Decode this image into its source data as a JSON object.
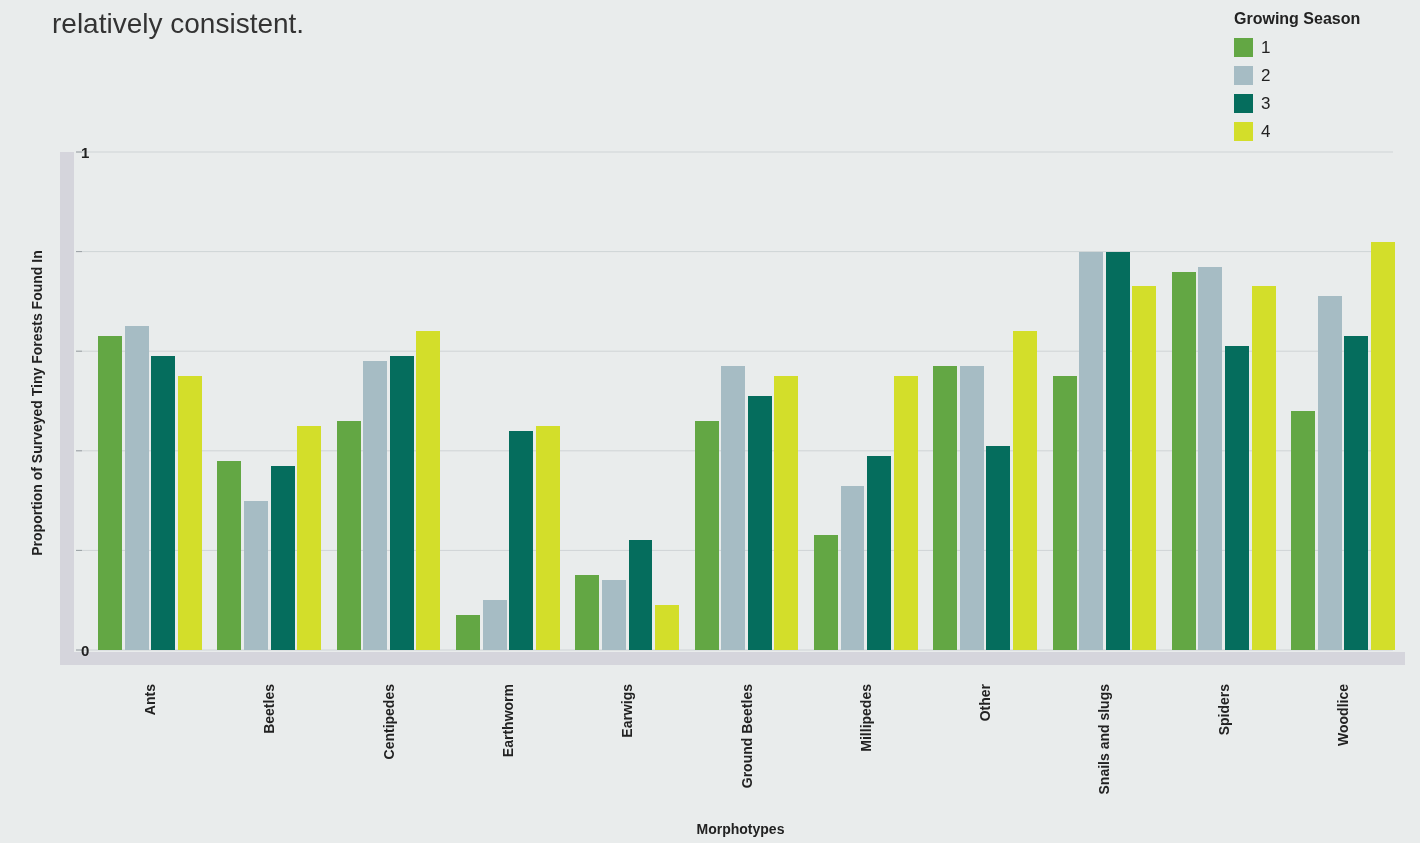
{
  "chart_data": {
    "type": "bar",
    "title": "relatively consistent.",
    "xlabel": "Morphotypes",
    "ylabel": "Proportion of Surveyed Tiny Forests Found In",
    "legend_title": "Growing Season",
    "legend": "top right",
    "grid": "y",
    "categories": [
      "Ants",
      "Beetles",
      "Centipedes",
      "Earthworm",
      "Earwigs",
      "Ground Beetles",
      "Millipedes",
      "Other",
      "Snails and slugs",
      "Spiders",
      "Woodlice"
    ],
    "ylim": [
      0,
      1
    ],
    "yticks": [
      0,
      {
        "value": 0.2,
        "label": null
      },
      {
        "value": 0.4,
        "label": null
      },
      {
        "value": 0.6,
        "label": null
      },
      {
        "value": 0.8,
        "label": null
      },
      1
    ],
    "series": [
      {
        "name": "1",
        "color": "#63a744",
        "values": [
          0.63,
          0.38,
          0.46,
          0.07,
          0.15,
          0.46,
          0.23,
          0.57,
          0.55,
          0.76,
          0.48
        ]
      },
      {
        "name": "2",
        "color": "#a6bcc4",
        "values": [
          0.65,
          0.3,
          0.58,
          0.1,
          0.14,
          0.57,
          0.33,
          0.57,
          0.8,
          0.77,
          0.71
        ]
      },
      {
        "name": "3",
        "color": "#056d5d",
        "values": [
          0.59,
          0.37,
          0.59,
          0.44,
          0.22,
          0.51,
          0.39,
          0.41,
          0.8,
          0.61,
          0.63
        ]
      },
      {
        "name": "4",
        "color": "#d3de2a",
        "values": [
          0.55,
          0.45,
          0.64,
          0.45,
          0.09,
          0.55,
          0.55,
          0.64,
          0.73,
          0.73,
          0.82
        ]
      }
    ]
  }
}
